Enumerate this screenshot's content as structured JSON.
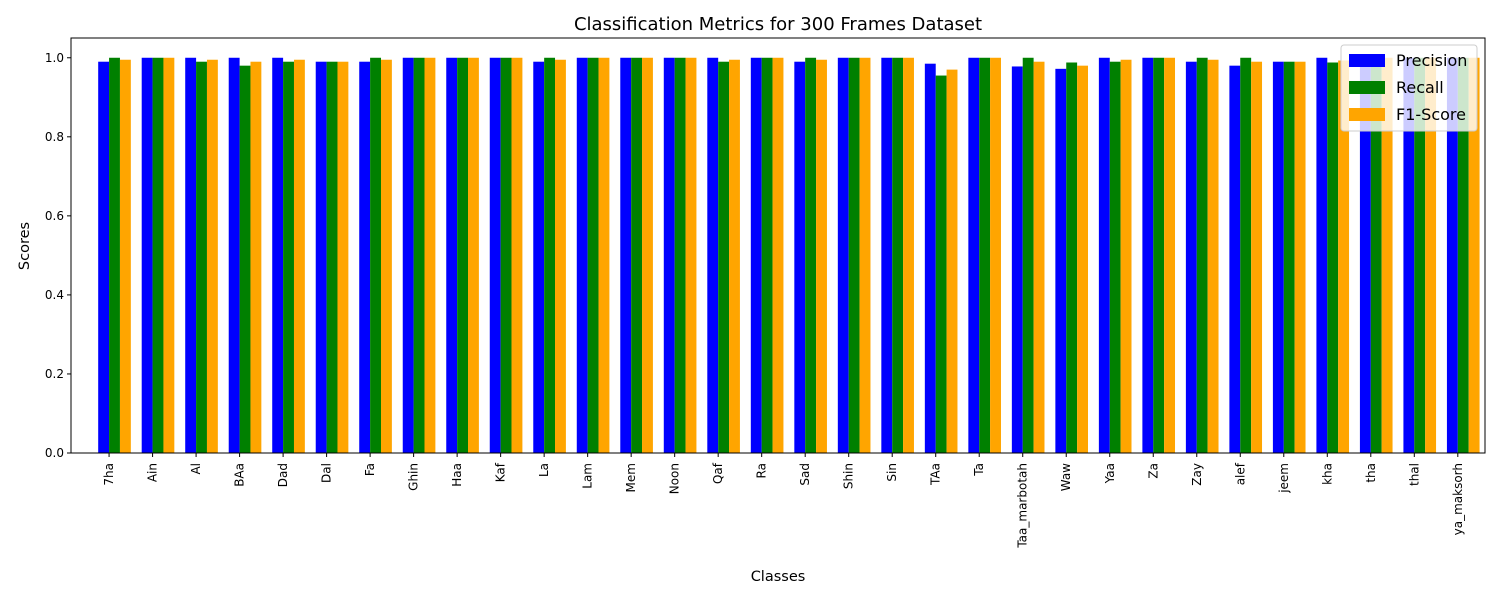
{
  "chart_data": {
    "type": "bar",
    "title": "Classification Metrics for 300 Frames Dataset",
    "xlabel": "Classes",
    "ylabel": "Scores",
    "ylim": [
      0,
      1.05
    ],
    "yticks": [
      "0.0",
      "0.2",
      "0.4",
      "0.6",
      "0.8",
      "1.0"
    ],
    "legend_position": "top-right",
    "grid": false,
    "categories": [
      "7ha",
      "Ain",
      "Al",
      "BAa",
      "Dad",
      "Dal",
      "Fa",
      "Ghin",
      "Haa",
      "Kaf",
      "La",
      "Lam",
      "Mem",
      "Noon",
      "Qaf",
      "Ra",
      "Sad",
      "Shin",
      "Sin",
      "TAa",
      "Ta",
      "Taa_marbotah",
      "Waw",
      "Yaa",
      "Za",
      "Zay",
      "alef",
      "jeem",
      "kha",
      "tha",
      "thal",
      "ya_maksorh"
    ],
    "series": [
      {
        "name": "Precision",
        "color": "#0000ff",
        "values": [
          0.99,
          1.0,
          1.0,
          1.0,
          1.0,
          0.99,
          0.99,
          1.0,
          1.0,
          1.0,
          0.99,
          1.0,
          1.0,
          1.0,
          1.0,
          1.0,
          0.99,
          1.0,
          1.0,
          0.985,
          1.0,
          0.978,
          0.972,
          1.0,
          1.0,
          0.99,
          0.98,
          0.99,
          1.0,
          1.0,
          1.0,
          1.0
        ]
      },
      {
        "name": "Recall",
        "color": "#008000",
        "values": [
          1.0,
          1.0,
          0.99,
          0.98,
          0.99,
          0.99,
          1.0,
          1.0,
          1.0,
          1.0,
          1.0,
          1.0,
          1.0,
          1.0,
          0.99,
          1.0,
          1.0,
          1.0,
          1.0,
          0.955,
          1.0,
          1.0,
          0.988,
          0.99,
          1.0,
          1.0,
          1.0,
          0.99,
          0.988,
          1.0,
          1.0,
          1.0
        ]
      },
      {
        "name": "F1-Score",
        "color": "#ffa500",
        "values": [
          0.995,
          1.0,
          0.995,
          0.99,
          0.995,
          0.99,
          0.995,
          1.0,
          1.0,
          1.0,
          0.995,
          1.0,
          1.0,
          1.0,
          0.995,
          1.0,
          0.995,
          1.0,
          1.0,
          0.97,
          1.0,
          0.99,
          0.98,
          0.995,
          1.0,
          0.995,
          0.99,
          0.99,
          0.993,
          1.0,
          1.0,
          1.0
        ]
      }
    ]
  }
}
